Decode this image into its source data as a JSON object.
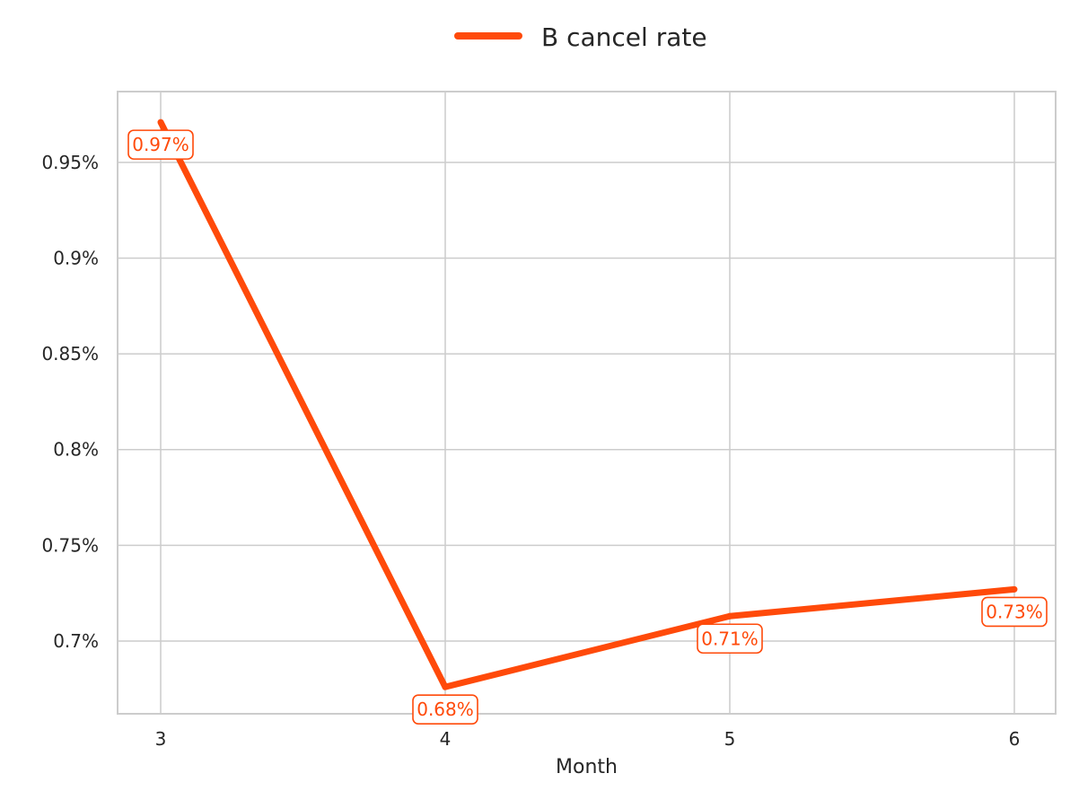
{
  "chart_data": {
    "type": "line",
    "title": "",
    "xlabel": "Month",
    "ylabel": "",
    "x": [
      3,
      4,
      5,
      6
    ],
    "x_tick_labels": [
      "3",
      "4",
      "5",
      "6"
    ],
    "y_tick_values": [
      0.007,
      0.0075,
      0.008,
      0.0085,
      0.009,
      0.0095
    ],
    "y_tick_labels": [
      "0.7%",
      "0.75%",
      "0.8%",
      "0.85%",
      "0.9%",
      "0.95%"
    ],
    "ylim": [
      0.00662,
      0.00987
    ],
    "grid": true,
    "legend_position": "top-center",
    "series": [
      {
        "name": "B cancel rate",
        "color": "#ff4a0a",
        "values": [
          0.00971,
          0.00676,
          0.00713,
          0.00727
        ],
        "data_labels": [
          "0.97%",
          "0.68%",
          "0.71%",
          "0.73%"
        ]
      }
    ]
  }
}
